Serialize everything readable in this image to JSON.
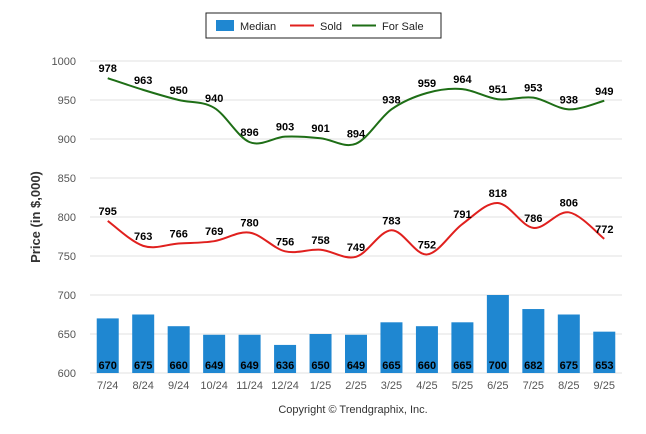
{
  "chart_data": {
    "type": "bar+line",
    "categories": [
      "7/24",
      "8/24",
      "9/24",
      "10/24",
      "11/24",
      "12/24",
      "1/25",
      "2/25",
      "3/25",
      "4/25",
      "5/25",
      "6/25",
      "7/25",
      "8/25",
      "9/25"
    ],
    "series": [
      {
        "name": "Median",
        "type": "bar",
        "color": "#1f87d1",
        "values": [
          670,
          675,
          660,
          649,
          649,
          636,
          650,
          649,
          665,
          660,
          665,
          700,
          682,
          675,
          653
        ]
      },
      {
        "name": "Sold",
        "type": "line",
        "color": "#e0201e",
        "values": [
          795,
          763,
          766,
          769,
          780,
          756,
          758,
          749,
          783,
          752,
          791,
          818,
          786,
          806,
          772
        ]
      },
      {
        "name": "For Sale",
        "type": "line",
        "color": "#1e6e16",
        "values": [
          978,
          963,
          950,
          940,
          896,
          903,
          901,
          894,
          938,
          959,
          964,
          951,
          953,
          938,
          949
        ]
      }
    ],
    "ylabel": "Price (in $,000)",
    "ylim": [
      600,
      1000
    ],
    "yticks": [
      600,
      650,
      700,
      750,
      800,
      850,
      900,
      950,
      1000
    ],
    "grid": true,
    "legend": "top-center"
  },
  "copyright": "Copyright © Trendgraphix, Inc."
}
